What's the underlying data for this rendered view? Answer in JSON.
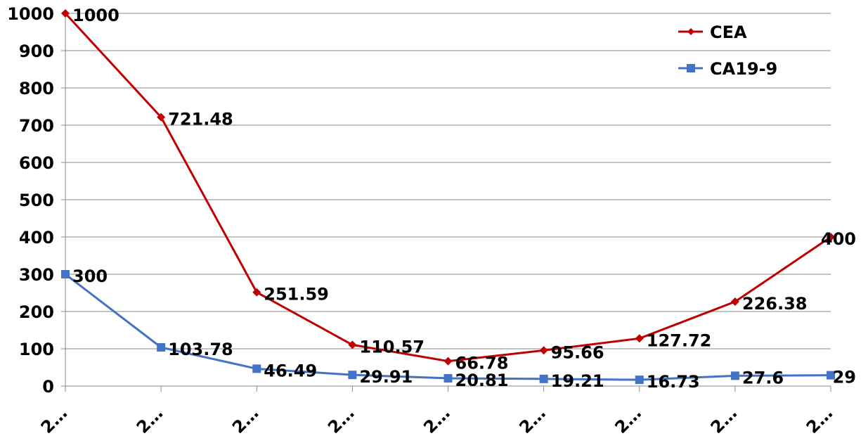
{
  "chart_data": {
    "type": "line",
    "categories": [
      "2…",
      "2…",
      "2…",
      "2…",
      "2…",
      "2…",
      "2…",
      "2…",
      "2…"
    ],
    "ylim": [
      0,
      1000
    ],
    "yticks": [
      0,
      100,
      200,
      300,
      400,
      500,
      600,
      700,
      800,
      900,
      1000
    ],
    "grid": "horizontal",
    "legend_position": "top-right",
    "series": [
      {
        "name": "CEA",
        "color": "#C00000",
        "marker": "diamond",
        "values": [
          1000,
          721.48,
          251.59,
          110.57,
          66.78,
          95.66,
          127.72,
          226.38,
          400
        ],
        "labels": [
          "1000",
          "721.48",
          "251.59",
          "110.57",
          "66.78",
          "95.66",
          "127.72",
          "226.38",
          "400"
        ]
      },
      {
        "name": "CA19-9",
        "color": "#4472C4",
        "marker": "square",
        "values": [
          300,
          103.78,
          46.49,
          29.91,
          20.81,
          19.21,
          16.73,
          27.6,
          29
        ],
        "labels": [
          "300",
          "103.78",
          "46.49",
          "29.91",
          "20.81",
          "19.21",
          "16.73",
          "27.6",
          "29"
        ]
      }
    ]
  }
}
